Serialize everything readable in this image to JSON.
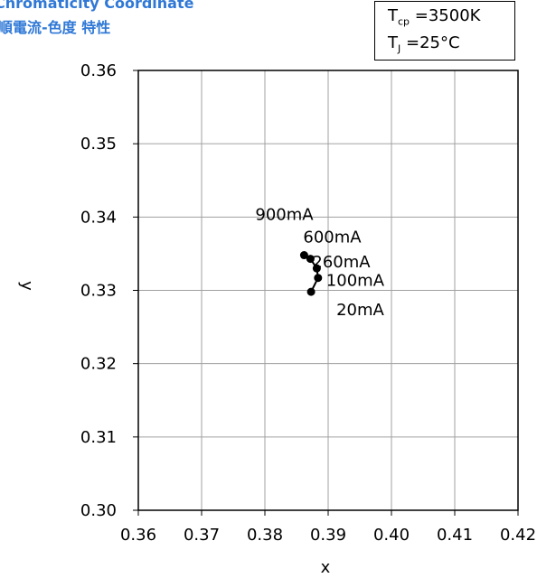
{
  "title_en": "Chromaticity Coordinate",
  "title_cn": "順電流-色度 特性",
  "conditions": {
    "tcp_symbol": "T",
    "tcp_sub": "cp",
    "tcp_value": "=3500K",
    "tj_symbol": "T",
    "tj_sub": "J",
    "tj_value": "=25°C"
  },
  "chart_data": {
    "type": "line",
    "xlabel": "x",
    "ylabel": "y",
    "xlim": [
      0.36,
      0.42
    ],
    "ylim": [
      0.3,
      0.36
    ],
    "xticks": [
      "0.36",
      "0.37",
      "0.38",
      "0.39",
      "0.40",
      "0.41",
      "0.42"
    ],
    "yticks": [
      "0.30",
      "0.31",
      "0.32",
      "0.33",
      "0.34",
      "0.35",
      "0.36"
    ],
    "grid": true,
    "points": [
      {
        "label": "20mA",
        "x": 0.3873,
        "y": 0.3298
      },
      {
        "label": "100mA",
        "x": 0.3884,
        "y": 0.3317
      },
      {
        "label": "260mA",
        "x": 0.3882,
        "y": 0.333
      },
      {
        "label": "600mA",
        "x": 0.3872,
        "y": 0.3343
      },
      {
        "label": "900mA",
        "x": 0.3862,
        "y": 0.3348
      }
    ],
    "color": "#000000"
  }
}
